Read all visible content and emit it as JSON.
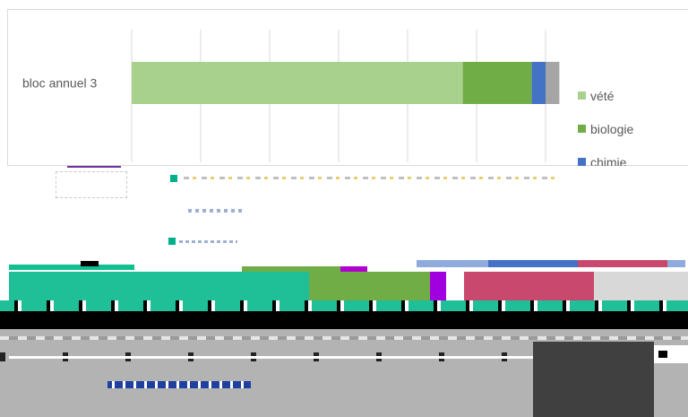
{
  "chart_data": {
    "type": "bar",
    "orientation": "horizontal",
    "stacked": true,
    "categories": [
      "bloc annuel 3"
    ],
    "series": [
      {
        "name": "vété",
        "values": [
          72
        ],
        "color": "#a9d18e"
      },
      {
        "name": "biologie",
        "values": [
          15
        ],
        "color": "#70ad47"
      },
      {
        "name": "chimie",
        "values": [
          3
        ],
        "color": "#4472c4"
      }
    ],
    "remainder": {
      "values": [
        3
      ],
      "color": "#a5a5a5"
    },
    "xlim": [
      0,
      90
    ],
    "grid": true,
    "legend_position": "right"
  }
}
